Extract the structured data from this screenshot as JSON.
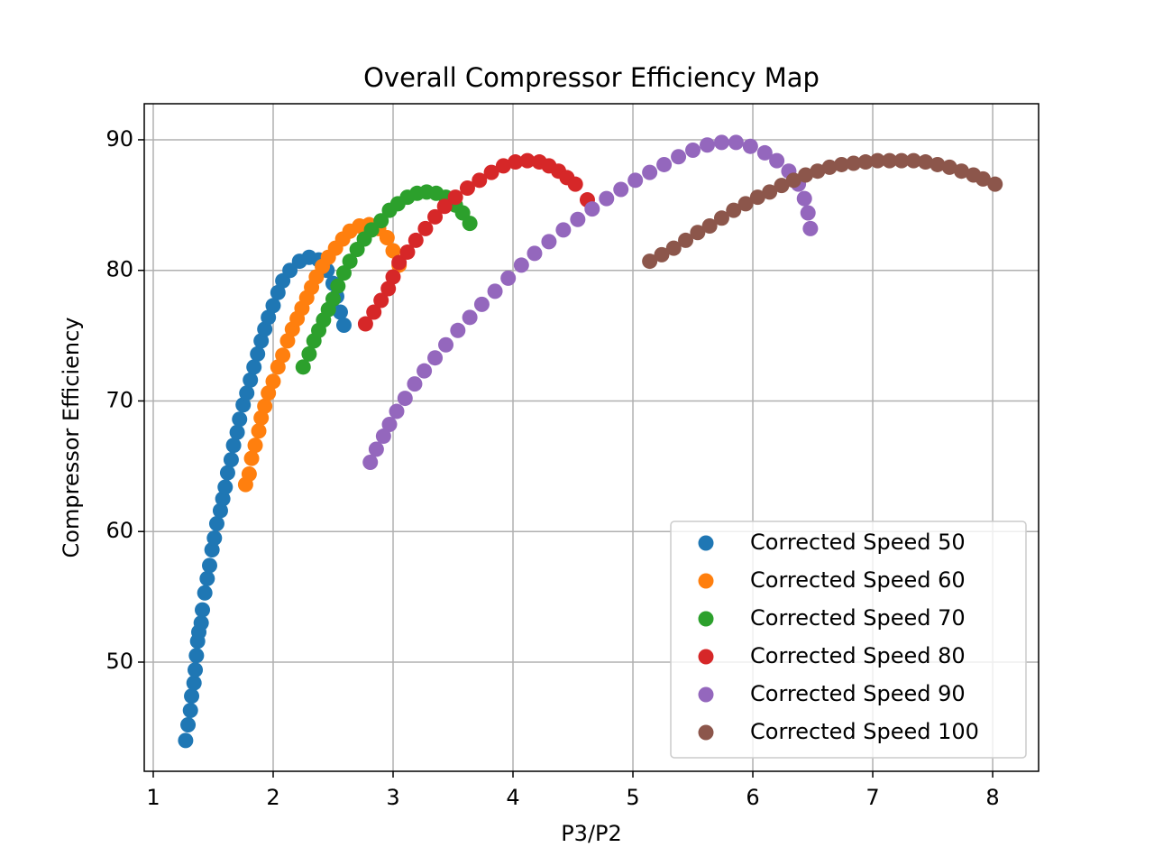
{
  "chart_data": {
    "type": "scatter",
    "title": "Overall Compressor Efficiency Map",
    "xlabel": "P3/P2",
    "ylabel": "Compressor Efficiency",
    "xlim": [
      0.925,
      8.383
    ],
    "ylim": [
      41.64,
      92.76
    ],
    "xticks": [
      1,
      2,
      3,
      4,
      5,
      6,
      7,
      8
    ],
    "yticks": [
      50,
      60,
      70,
      80,
      90
    ],
    "grid": true,
    "legend": "lower right",
    "series": [
      {
        "name": "Corrected Speed 50",
        "color": "#1f77b4",
        "x": [
          1.27,
          1.29,
          1.31,
          1.32,
          1.34,
          1.35,
          1.36,
          1.37,
          1.38,
          1.4,
          1.41,
          1.43,
          1.45,
          1.47,
          1.49,
          1.51,
          1.53,
          1.56,
          1.58,
          1.6,
          1.62,
          1.65,
          1.67,
          1.7,
          1.72,
          1.75,
          1.78,
          1.81,
          1.84,
          1.87,
          1.9,
          1.93,
          1.96,
          2.0,
          2.04,
          2.08,
          2.14,
          2.22,
          2.3,
          2.38,
          2.45,
          2.5,
          2.53,
          2.56,
          2.59
        ],
        "values": [
          44.0,
          45.2,
          46.3,
          47.4,
          48.4,
          49.4,
          50.5,
          51.6,
          52.3,
          53.0,
          54.0,
          55.3,
          56.4,
          57.4,
          58.6,
          59.5,
          60.6,
          61.6,
          62.5,
          63.4,
          64.5,
          65.5,
          66.6,
          67.6,
          68.6,
          69.7,
          70.6,
          71.6,
          72.6,
          73.6,
          74.6,
          75.5,
          76.4,
          77.3,
          78.3,
          79.2,
          80.0,
          80.7,
          81.0,
          80.8,
          80.0,
          79.0,
          78.0,
          76.8,
          75.8
        ]
      },
      {
        "name": "Corrected Speed 60",
        "color": "#ff7f0e",
        "x": [
          1.77,
          1.8,
          1.82,
          1.85,
          1.88,
          1.9,
          1.93,
          1.96,
          2.0,
          2.04,
          2.08,
          2.12,
          2.16,
          2.2,
          2.24,
          2.28,
          2.32,
          2.36,
          2.41,
          2.46,
          2.52,
          2.58,
          2.64,
          2.72,
          2.8,
          2.88,
          2.95,
          3.0,
          3.05
        ],
        "values": [
          63.6,
          64.4,
          65.6,
          66.6,
          67.7,
          68.7,
          69.6,
          70.6,
          71.5,
          72.6,
          73.5,
          74.6,
          75.5,
          76.3,
          77.1,
          77.9,
          78.7,
          79.5,
          80.3,
          81.0,
          81.7,
          82.4,
          83.0,
          83.4,
          83.5,
          83.2,
          82.5,
          81.5,
          80.4
        ]
      },
      {
        "name": "Corrected Speed 70",
        "color": "#2ca02c",
        "x": [
          2.25,
          2.3,
          2.34,
          2.38,
          2.42,
          2.46,
          2.5,
          2.54,
          2.59,
          2.64,
          2.7,
          2.76,
          2.82,
          2.9,
          2.97,
          3.04,
          3.12,
          3.2,
          3.28,
          3.36,
          3.44,
          3.52,
          3.58,
          3.64
        ],
        "values": [
          72.6,
          73.6,
          74.6,
          75.4,
          76.2,
          77.0,
          77.8,
          78.8,
          79.8,
          80.7,
          81.6,
          82.4,
          83.1,
          83.8,
          84.6,
          85.1,
          85.6,
          85.9,
          86.0,
          85.9,
          85.6,
          85.0,
          84.4,
          83.6
        ]
      },
      {
        "name": "Corrected Speed 80",
        "color": "#d62728",
        "x": [
          2.77,
          2.84,
          2.9,
          2.96,
          3.0,
          3.05,
          3.12,
          3.19,
          3.27,
          3.35,
          3.43,
          3.52,
          3.62,
          3.72,
          3.82,
          3.92,
          4.02,
          4.12,
          4.22,
          4.3,
          4.38,
          4.45,
          4.52,
          4.62
        ],
        "values": [
          75.9,
          76.8,
          77.7,
          78.6,
          79.5,
          80.6,
          81.4,
          82.3,
          83.2,
          84.1,
          84.9,
          85.6,
          86.3,
          86.9,
          87.5,
          88.0,
          88.3,
          88.4,
          88.3,
          88.0,
          87.6,
          87.1,
          86.6,
          85.4
        ]
      },
      {
        "name": "Corrected Speed 90",
        "color": "#9467bd",
        "x": [
          2.81,
          2.86,
          2.92,
          2.97,
          3.03,
          3.1,
          3.18,
          3.26,
          3.35,
          3.44,
          3.54,
          3.64,
          3.74,
          3.85,
          3.96,
          4.07,
          4.18,
          4.3,
          4.42,
          4.54,
          4.66,
          4.78,
          4.9,
          5.02,
          5.14,
          5.26,
          5.38,
          5.5,
          5.62,
          5.74,
          5.86,
          5.98,
          6.1,
          6.2,
          6.3,
          6.38,
          6.43,
          6.46,
          6.48
        ],
        "values": [
          65.3,
          66.3,
          67.3,
          68.2,
          69.2,
          70.2,
          71.3,
          72.3,
          73.3,
          74.3,
          75.4,
          76.4,
          77.4,
          78.4,
          79.4,
          80.4,
          81.3,
          82.2,
          83.1,
          83.9,
          84.7,
          85.5,
          86.2,
          86.9,
          87.5,
          88.1,
          88.7,
          89.2,
          89.6,
          89.8,
          89.8,
          89.5,
          89.0,
          88.4,
          87.6,
          86.6,
          85.5,
          84.4,
          83.2
        ]
      },
      {
        "name": "Corrected Speed 100",
        "color": "#8c564b",
        "x": [
          5.14,
          5.24,
          5.34,
          5.44,
          5.54,
          5.64,
          5.74,
          5.84,
          5.94,
          6.04,
          6.14,
          6.24,
          6.34,
          6.44,
          6.54,
          6.64,
          6.74,
          6.84,
          6.94,
          7.04,
          7.14,
          7.24,
          7.34,
          7.44,
          7.54,
          7.64,
          7.74,
          7.84,
          7.92,
          8.02
        ],
        "values": [
          80.7,
          81.2,
          81.7,
          82.3,
          82.9,
          83.4,
          84.0,
          84.6,
          85.1,
          85.6,
          86.0,
          86.5,
          86.9,
          87.3,
          87.6,
          87.9,
          88.1,
          88.2,
          88.3,
          88.4,
          88.4,
          88.4,
          88.4,
          88.3,
          88.1,
          87.9,
          87.6,
          87.3,
          87.0,
          86.6
        ]
      }
    ]
  }
}
